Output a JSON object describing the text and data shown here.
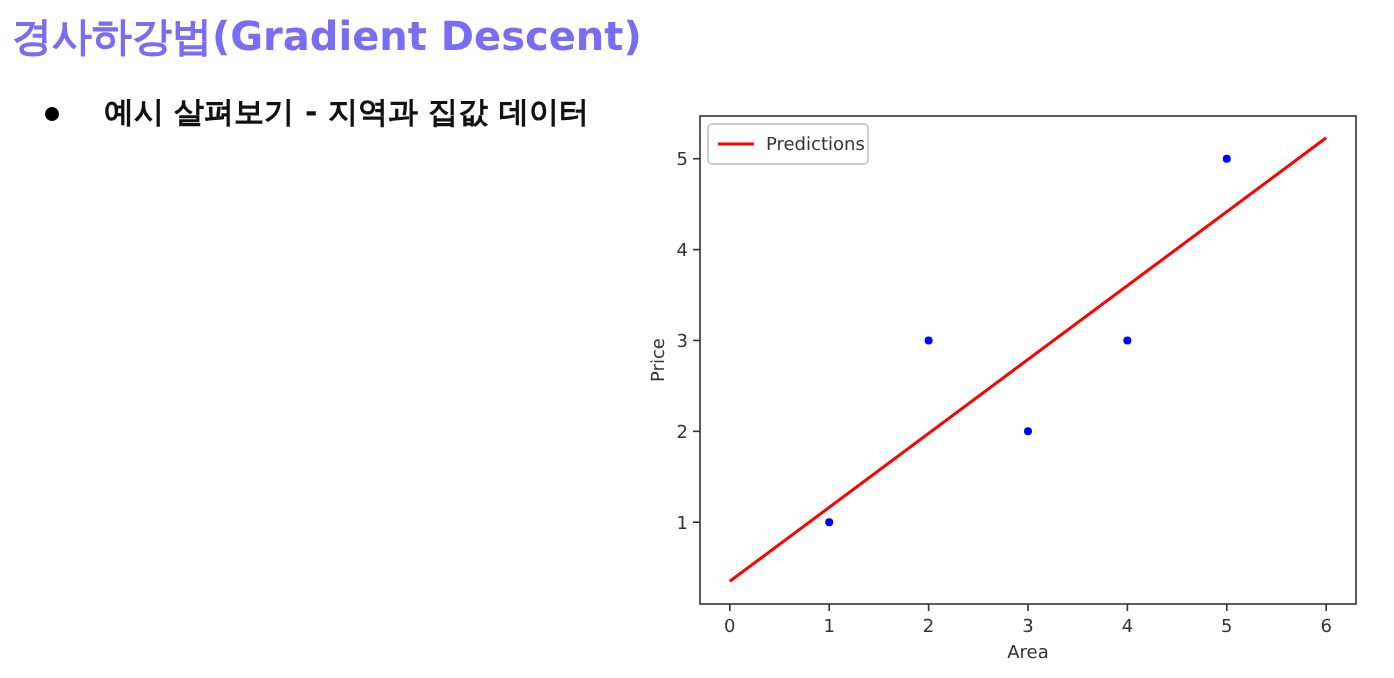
{
  "chart_data": {
    "type": "scatter",
    "title": "경사하강법(Gradient Descent)",
    "subtitle": "예시 살펴보기 - 지역과 집값 데이터",
    "xlabel": "Area",
    "ylabel": "Price",
    "xlim": [
      -0.3,
      6.3
    ],
    "ylim": [
      0.1,
      5.47
    ],
    "xticks": [
      0,
      1,
      2,
      3,
      4,
      5,
      6
    ],
    "yticks": [
      1,
      2,
      3,
      4,
      5
    ],
    "legend": "top left",
    "grid": false,
    "series": [
      {
        "marker": "circle",
        "color": "#0000ff",
        "x": [
          1,
          2,
          3,
          4,
          5
        ],
        "values": [
          1,
          3,
          2,
          3,
          5
        ]
      },
      {
        "type": "line",
        "line_style": "solid",
        "name": "Predictions",
        "color": "#ff0000",
        "x": [
          0,
          6
        ],
        "values": [
          0.35,
          5.23
        ]
      }
    ]
  }
}
